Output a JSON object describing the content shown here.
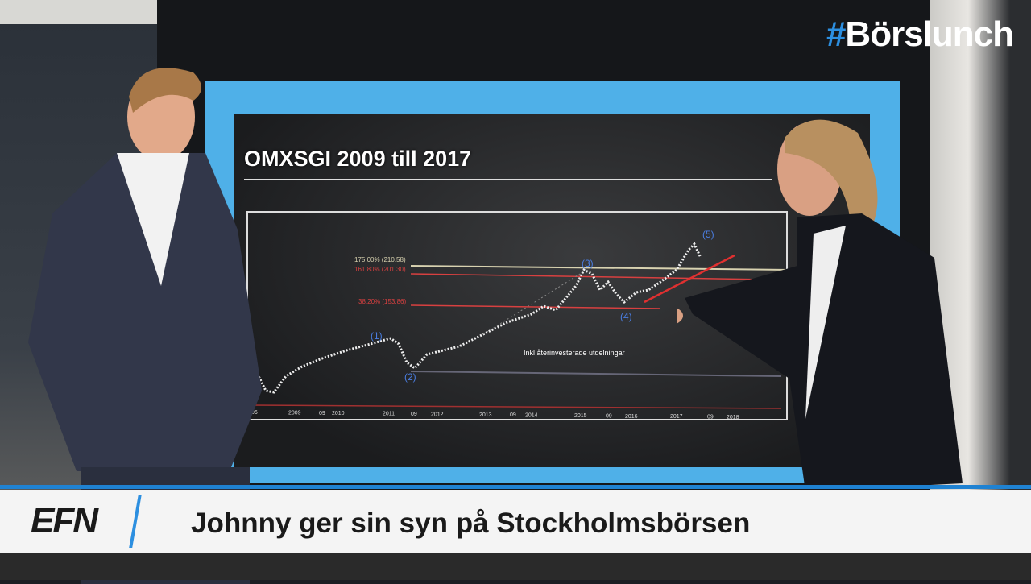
{
  "broadcast": {
    "logo_hash": "#",
    "logo_text": "Börslunch",
    "channel_logo": "EFN",
    "headline": "Johnny ger sin syn på Stockholmsbörsen",
    "accent_color": "#1f82d2"
  },
  "screen": {
    "title": "OMXSGI 2009 till 2017",
    "levels": [
      {
        "label": "175.00% (210.58)",
        "color": "#d8d2b0"
      },
      {
        "label": "161.80% (201.30)",
        "color": "#d84040"
      },
      {
        "label": "38.20% (153.86)",
        "color": "#d84040"
      }
    ],
    "waves": [
      "(1)",
      "(2)",
      "(3)",
      "(4)",
      "(5)"
    ],
    "annotation": "Inkl återinvesterade utdelningar",
    "x_ticks": [
      "06",
      "2009",
      "09",
      "2010",
      "2011",
      "09",
      "2012",
      "2013",
      "09",
      "2014",
      "2015",
      "09",
      "2016",
      "2017",
      "09",
      "2018"
    ]
  }
}
